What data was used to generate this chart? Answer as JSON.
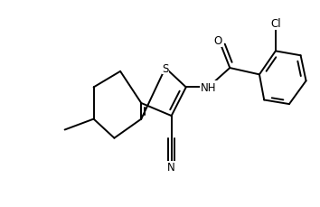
{
  "bg": "#ffffff",
  "lc": "#000000",
  "lw": 1.4,
  "fs": 8.5,
  "xlim": [
    0.02,
    1.02
  ],
  "ylim": [
    0.08,
    0.92
  ]
}
